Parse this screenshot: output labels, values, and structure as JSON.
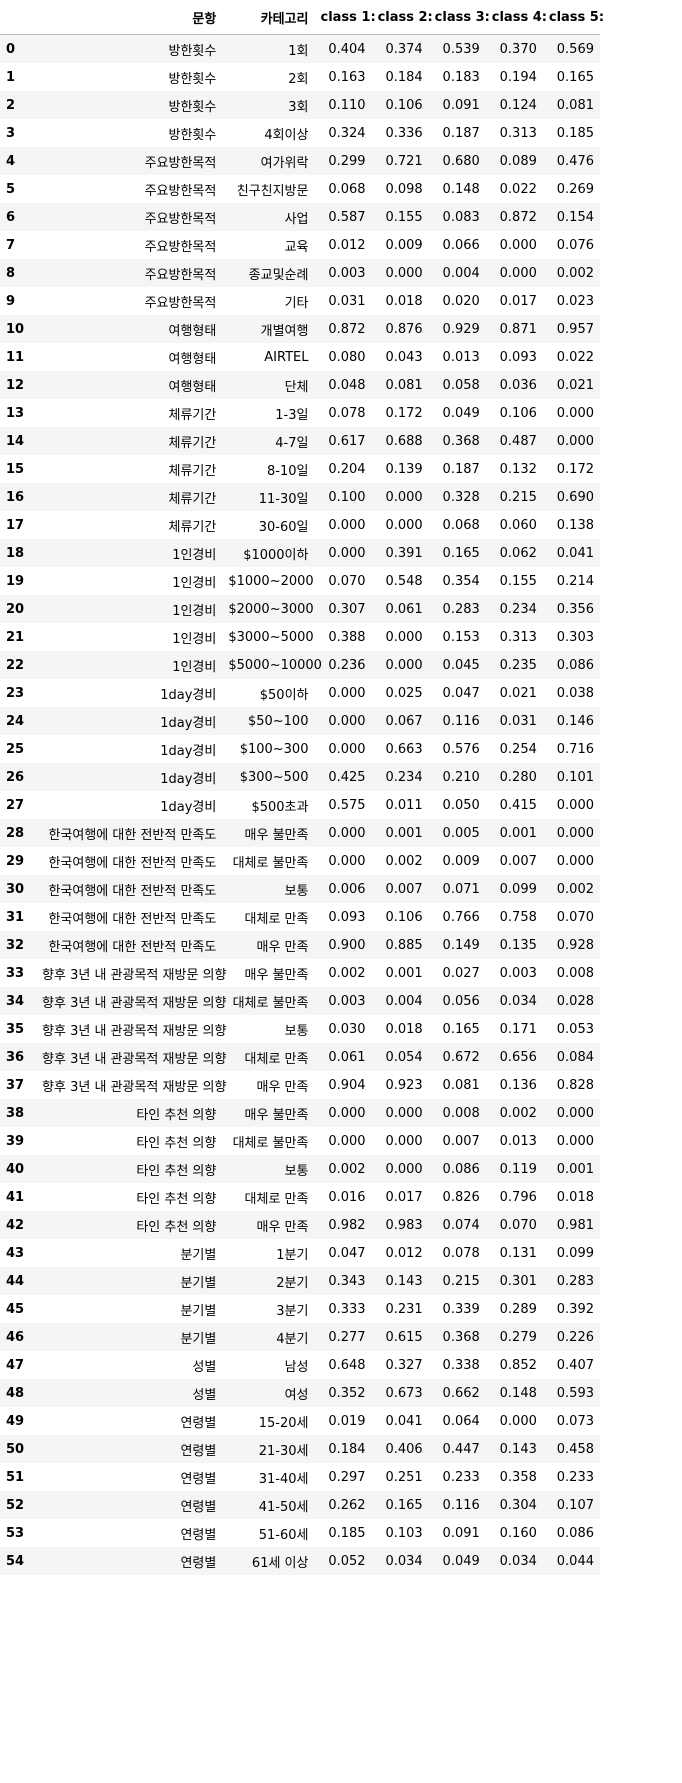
{
  "table": {
    "headers": [
      "",
      "문항",
      "카테고리",
      "class 1:",
      "class 2:",
      "class 3:",
      "class 4:",
      "class 5:"
    ],
    "rows": [
      [
        "0",
        "방한횟수",
        "1회",
        "0.404",
        "0.374",
        "0.539",
        "0.370",
        "0.569"
      ],
      [
        "1",
        "방한횟수",
        "2회",
        "0.163",
        "0.184",
        "0.183",
        "0.194",
        "0.165"
      ],
      [
        "2",
        "방한횟수",
        "3회",
        "0.110",
        "0.106",
        "0.091",
        "0.124",
        "0.081"
      ],
      [
        "3",
        "방한횟수",
        "4회이상",
        "0.324",
        "0.336",
        "0.187",
        "0.313",
        "0.185"
      ],
      [
        "4",
        "주요방한목적",
        "여가위락",
        "0.299",
        "0.721",
        "0.680",
        "0.089",
        "0.476"
      ],
      [
        "5",
        "주요방한목적",
        "친구친지방문",
        "0.068",
        "0.098",
        "0.148",
        "0.022",
        "0.269"
      ],
      [
        "6",
        "주요방한목적",
        "사업",
        "0.587",
        "0.155",
        "0.083",
        "0.872",
        "0.154"
      ],
      [
        "7",
        "주요방한목적",
        "교육",
        "0.012",
        "0.009",
        "0.066",
        "0.000",
        "0.076"
      ],
      [
        "8",
        "주요방한목적",
        "종교및순례",
        "0.003",
        "0.000",
        "0.004",
        "0.000",
        "0.002"
      ],
      [
        "9",
        "주요방한목적",
        "기타",
        "0.031",
        "0.018",
        "0.020",
        "0.017",
        "0.023"
      ],
      [
        "10",
        "여행형태",
        "개별여행",
        "0.872",
        "0.876",
        "0.929",
        "0.871",
        "0.957"
      ],
      [
        "11",
        "여행형태",
        "AIRTEL",
        "0.080",
        "0.043",
        "0.013",
        "0.093",
        "0.022"
      ],
      [
        "12",
        "여행형태",
        "단체",
        "0.048",
        "0.081",
        "0.058",
        "0.036",
        "0.021"
      ],
      [
        "13",
        "체류기간",
        "1-3일",
        "0.078",
        "0.172",
        "0.049",
        "0.106",
        "0.000"
      ],
      [
        "14",
        "체류기간",
        "4-7일",
        "0.617",
        "0.688",
        "0.368",
        "0.487",
        "0.000"
      ],
      [
        "15",
        "체류기간",
        "8-10일",
        "0.204",
        "0.139",
        "0.187",
        "0.132",
        "0.172"
      ],
      [
        "16",
        "체류기간",
        "11-30일",
        "0.100",
        "0.000",
        "0.328",
        "0.215",
        "0.690"
      ],
      [
        "17",
        "체류기간",
        "30-60일",
        "0.000",
        "0.000",
        "0.068",
        "0.060",
        "0.138"
      ],
      [
        "18",
        "1인경비",
        "$1000이하",
        "0.000",
        "0.391",
        "0.165",
        "0.062",
        "0.041"
      ],
      [
        "19",
        "1인경비",
        "$1000~2000",
        "0.070",
        "0.548",
        "0.354",
        "0.155",
        "0.214"
      ],
      [
        "20",
        "1인경비",
        "$2000~3000",
        "0.307",
        "0.061",
        "0.283",
        "0.234",
        "0.356"
      ],
      [
        "21",
        "1인경비",
        "$3000~5000",
        "0.388",
        "0.000",
        "0.153",
        "0.313",
        "0.303"
      ],
      [
        "22",
        "1인경비",
        "$5000~10000",
        "0.236",
        "0.000",
        "0.045",
        "0.235",
        "0.086"
      ],
      [
        "23",
        "1day경비",
        "$50이하",
        "0.000",
        "0.025",
        "0.047",
        "0.021",
        "0.038"
      ],
      [
        "24",
        "1day경비",
        "$50~100",
        "0.000",
        "0.067",
        "0.116",
        "0.031",
        "0.146"
      ],
      [
        "25",
        "1day경비",
        "$100~300",
        "0.000",
        "0.663",
        "0.576",
        "0.254",
        "0.716"
      ],
      [
        "26",
        "1day경비",
        "$300~500",
        "0.425",
        "0.234",
        "0.210",
        "0.280",
        "0.101"
      ],
      [
        "27",
        "1day경비",
        "$500초과",
        "0.575",
        "0.011",
        "0.050",
        "0.415",
        "0.000"
      ],
      [
        "28",
        "한국여행에 대한 전반적 만족도",
        "매우 불만족",
        "0.000",
        "0.001",
        "0.005",
        "0.001",
        "0.000"
      ],
      [
        "29",
        "한국여행에 대한 전반적 만족도",
        "대체로 불만족",
        "0.000",
        "0.002",
        "0.009",
        "0.007",
        "0.000"
      ],
      [
        "30",
        "한국여행에 대한 전반적 만족도",
        "보통",
        "0.006",
        "0.007",
        "0.071",
        "0.099",
        "0.002"
      ],
      [
        "31",
        "한국여행에 대한 전반적 만족도",
        "대체로 만족",
        "0.093",
        "0.106",
        "0.766",
        "0.758",
        "0.070"
      ],
      [
        "32",
        "한국여행에 대한 전반적 만족도",
        "매우 만족",
        "0.900",
        "0.885",
        "0.149",
        "0.135",
        "0.928"
      ],
      [
        "33",
        "향후 3년 내 관광목적 재방문 의향",
        "매우 불만족",
        "0.002",
        "0.001",
        "0.027",
        "0.003",
        "0.008"
      ],
      [
        "34",
        "향후 3년 내 관광목적 재방문 의향",
        "대체로 불만족",
        "0.003",
        "0.004",
        "0.056",
        "0.034",
        "0.028"
      ],
      [
        "35",
        "향후 3년 내 관광목적 재방문 의향",
        "보통",
        "0.030",
        "0.018",
        "0.165",
        "0.171",
        "0.053"
      ],
      [
        "36",
        "향후 3년 내 관광목적 재방문 의향",
        "대체로 만족",
        "0.061",
        "0.054",
        "0.672",
        "0.656",
        "0.084"
      ],
      [
        "37",
        "향후 3년 내 관광목적 재방문 의향",
        "매우 만족",
        "0.904",
        "0.923",
        "0.081",
        "0.136",
        "0.828"
      ],
      [
        "38",
        "타인 추천 의향",
        "매우 불만족",
        "0.000",
        "0.000",
        "0.008",
        "0.002",
        "0.000"
      ],
      [
        "39",
        "타인 추천 의향",
        "대체로 불만족",
        "0.000",
        "0.000",
        "0.007",
        "0.013",
        "0.000"
      ],
      [
        "40",
        "타인 추천 의향",
        "보통",
        "0.002",
        "0.000",
        "0.086",
        "0.119",
        "0.001"
      ],
      [
        "41",
        "타인 추천 의향",
        "대체로 만족",
        "0.016",
        "0.017",
        "0.826",
        "0.796",
        "0.018"
      ],
      [
        "42",
        "타인 추천 의향",
        "매우 만족",
        "0.982",
        "0.983",
        "0.074",
        "0.070",
        "0.981"
      ],
      [
        "43",
        "분기별",
        "1분기",
        "0.047",
        "0.012",
        "0.078",
        "0.131",
        "0.099"
      ],
      [
        "44",
        "분기별",
        "2분기",
        "0.343",
        "0.143",
        "0.215",
        "0.301",
        "0.283"
      ],
      [
        "45",
        "분기별",
        "3분기",
        "0.333",
        "0.231",
        "0.339",
        "0.289",
        "0.392"
      ],
      [
        "46",
        "분기별",
        "4분기",
        "0.277",
        "0.615",
        "0.368",
        "0.279",
        "0.226"
      ],
      [
        "47",
        "성별",
        "남성",
        "0.648",
        "0.327",
        "0.338",
        "0.852",
        "0.407"
      ],
      [
        "48",
        "성별",
        "여성",
        "0.352",
        "0.673",
        "0.662",
        "0.148",
        "0.593"
      ],
      [
        "49",
        "연령별",
        "15-20세",
        "0.019",
        "0.041",
        "0.064",
        "0.000",
        "0.073"
      ],
      [
        "50",
        "연령별",
        "21-30세",
        "0.184",
        "0.406",
        "0.447",
        "0.143",
        "0.458"
      ],
      [
        "51",
        "연령별",
        "31-40세",
        "0.297",
        "0.251",
        "0.233",
        "0.358",
        "0.233"
      ],
      [
        "52",
        "연령별",
        "41-50세",
        "0.262",
        "0.165",
        "0.116",
        "0.304",
        "0.107"
      ],
      [
        "53",
        "연령별",
        "51-60세",
        "0.185",
        "0.103",
        "0.091",
        "0.160",
        "0.086"
      ],
      [
        "54",
        "연령별",
        "61세 이상",
        "0.052",
        "0.034",
        "0.049",
        "0.034",
        "0.044"
      ]
    ]
  }
}
